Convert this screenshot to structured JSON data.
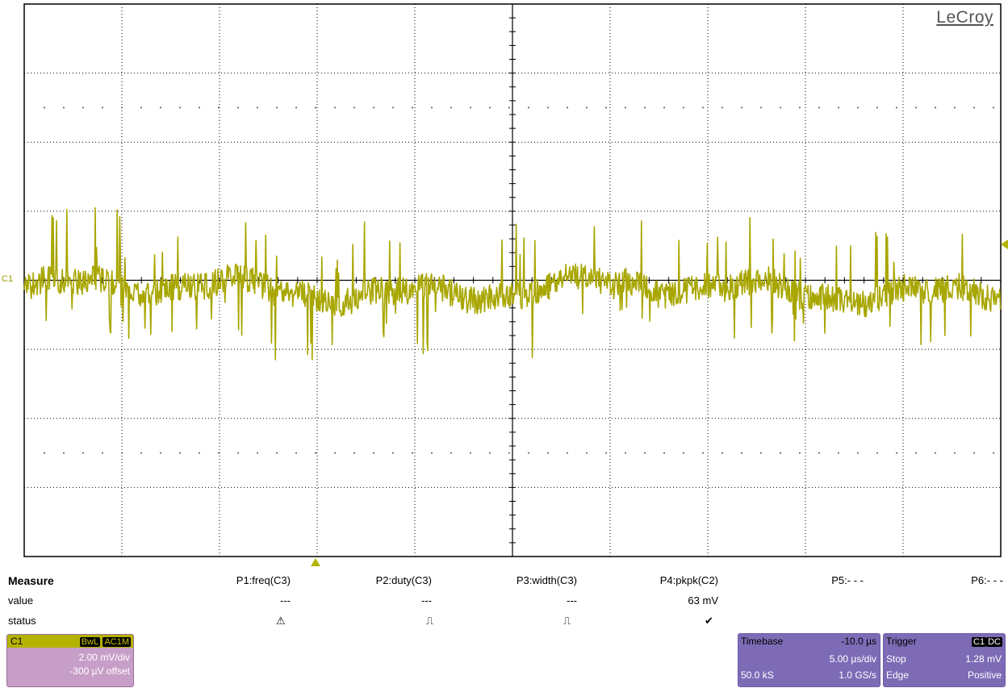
{
  "logo": "LeCroy",
  "channel_marker": "C1",
  "colors": {
    "trace": "#a8a600",
    "c1_box": "#c79ec8",
    "timebase_box": "#7d6bb6",
    "trigger_marker": "#b4b300"
  },
  "measure": {
    "title": "Measure",
    "row_labels": {
      "value": "value",
      "status": "status"
    },
    "params": [
      {
        "name": "P1:freq(C3)",
        "value": "---",
        "status_icon": "warning-icon",
        "status_glyph": "⚠"
      },
      {
        "name": "P2:duty(C3)",
        "value": "---",
        "status_icon": "pulse-icon",
        "status_glyph": "⎍"
      },
      {
        "name": "P3:width(C3)",
        "value": "---",
        "status_icon": "pulse-icon",
        "status_glyph": "⎍"
      },
      {
        "name": "P4:pkpk(C2)",
        "value": "63 mV",
        "status_icon": "check-icon",
        "status_glyph": "✔"
      },
      {
        "name": "P5:- - -",
        "value": "",
        "status_icon": "",
        "status_glyph": ""
      },
      {
        "name": "P6:- - -",
        "value": "",
        "status_icon": "",
        "status_glyph": ""
      }
    ]
  },
  "c1_box": {
    "name": "C1",
    "tag1": "BwL",
    "tag2": "AC1M",
    "scale": "2.00 mV/div",
    "offset": "-300 µV offset"
  },
  "timebase": {
    "label": "Timebase",
    "delay": "-10.0 µs",
    "scale": "5.00 µs/div",
    "samples": "50.0 kS",
    "rate": "1.0 GS/s"
  },
  "trigger": {
    "label": "Trigger",
    "source": "C1",
    "coupling": "DC",
    "mode": "Stop",
    "level": "1.28 mV",
    "type": "Edge",
    "slope": "Positive"
  }
}
